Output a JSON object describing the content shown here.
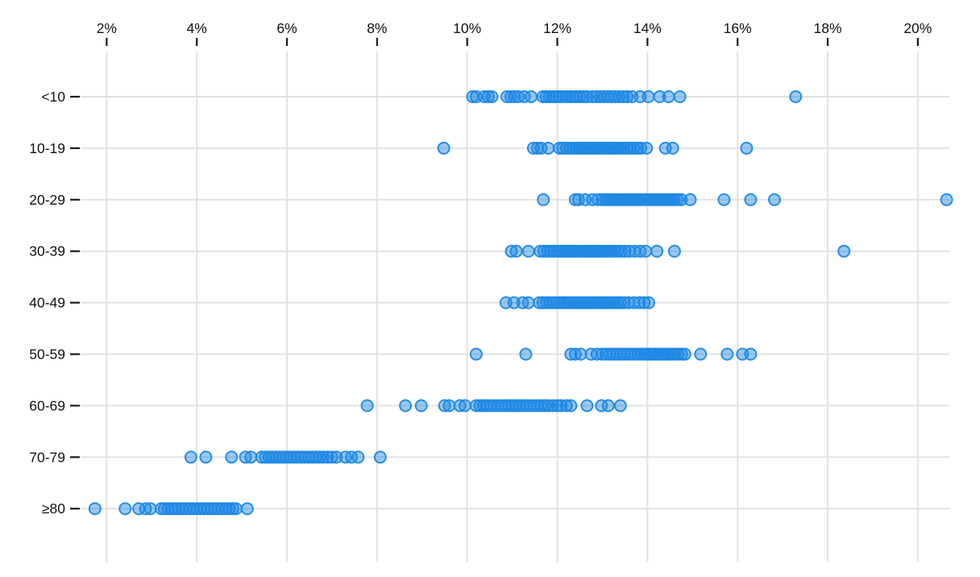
{
  "chart_data": {
    "type": "scatter",
    "variant": "strip-plot",
    "title": "",
    "xlabel": "",
    "ylabel": "",
    "x_axis": {
      "position": "top",
      "unit": "percent",
      "tick_values": [
        2,
        4,
        6,
        8,
        10,
        12,
        14,
        16,
        18,
        20
      ],
      "tick_labels": [
        "2%",
        "4%",
        "6%",
        "8%",
        "10%",
        "12%",
        "14%",
        "16%",
        "18%",
        "20%"
      ],
      "range": [
        1.6,
        20.7
      ],
      "grid": true
    },
    "y_axis": {
      "categories": [
        "<10",
        "10-19",
        "20-29",
        "30-39",
        "40-49",
        "50-59",
        "60-69",
        "70-79",
        "≥80"
      ],
      "grid": true
    },
    "legend": null,
    "series": [
      {
        "category": "<10",
        "values": [
          10.12,
          10.2,
          10.38,
          10.47,
          10.55,
          10.88,
          10.97,
          11.05,
          11.14,
          11.27,
          11.42,
          11.68,
          11.75,
          11.82,
          11.9,
          11.97,
          12.05,
          12.12,
          12.2,
          12.28,
          12.35,
          12.42,
          12.5,
          12.58,
          12.66,
          12.78,
          12.87,
          12.95,
          13.04,
          13.12,
          13.2,
          13.28,
          13.37,
          13.46,
          13.55,
          13.66,
          13.84,
          14.02,
          14.27,
          14.47,
          14.72,
          17.29
        ]
      },
      {
        "category": "10-19",
        "values": [
          9.48,
          11.47,
          11.56,
          11.64,
          11.8,
          12.05,
          12.12,
          12.2,
          12.28,
          12.35,
          12.42,
          12.48,
          12.55,
          12.62,
          12.68,
          12.75,
          12.82,
          12.88,
          12.95,
          13.02,
          13.08,
          13.15,
          13.22,
          13.28,
          13.35,
          13.42,
          13.48,
          13.55,
          13.62,
          13.7,
          13.78,
          13.85,
          13.98,
          14.4,
          14.56,
          16.2
        ]
      },
      {
        "category": "20-29",
        "values": [
          11.69,
          12.4,
          12.47,
          12.62,
          12.78,
          12.9,
          13.0,
          13.07,
          13.14,
          13.2,
          13.27,
          13.34,
          13.4,
          13.47,
          13.54,
          13.6,
          13.67,
          13.74,
          13.8,
          13.87,
          13.94,
          14.0,
          14.07,
          14.14,
          14.2,
          14.27,
          14.34,
          14.4,
          14.47,
          14.54,
          14.6,
          14.67,
          14.75,
          14.95,
          15.7,
          16.29,
          16.82,
          20.64
        ]
      },
      {
        "category": "30-39",
        "values": [
          10.98,
          11.09,
          11.36,
          11.62,
          11.7,
          11.78,
          11.85,
          11.92,
          12.0,
          12.07,
          12.14,
          12.2,
          12.27,
          12.34,
          12.4,
          12.47,
          12.54,
          12.6,
          12.67,
          12.74,
          12.8,
          12.87,
          12.94,
          13.0,
          13.07,
          13.14,
          13.2,
          13.27,
          13.34,
          13.42,
          13.5,
          13.6,
          13.72,
          13.84,
          13.96,
          14.21,
          14.6,
          18.36
        ]
      },
      {
        "category": "40-49",
        "values": [
          10.86,
          11.04,
          11.23,
          11.36,
          11.6,
          11.68,
          11.76,
          11.84,
          11.92,
          12.0,
          12.07,
          12.14,
          12.21,
          12.28,
          12.35,
          12.42,
          12.49,
          12.56,
          12.63,
          12.7,
          12.77,
          12.84,
          12.91,
          12.98,
          13.05,
          13.12,
          13.19,
          13.26,
          13.33,
          13.4,
          13.48,
          13.58,
          13.7,
          13.82,
          13.93,
          14.03
        ]
      },
      {
        "category": "50-59",
        "values": [
          10.2,
          11.3,
          12.3,
          12.4,
          12.52,
          12.75,
          12.88,
          13.0,
          13.08,
          13.16,
          13.24,
          13.32,
          13.4,
          13.48,
          13.56,
          13.64,
          13.72,
          13.8,
          13.87,
          13.94,
          14.0,
          14.07,
          14.14,
          14.2,
          14.27,
          14.34,
          14.4,
          14.47,
          14.54,
          14.6,
          14.68,
          14.76,
          14.83,
          15.18,
          15.77,
          16.11,
          16.29
        ]
      },
      {
        "category": "60-69",
        "values": [
          7.78,
          8.63,
          8.98,
          9.5,
          9.6,
          9.84,
          9.95,
          10.2,
          10.28,
          10.36,
          10.44,
          10.52,
          10.6,
          10.68,
          10.76,
          10.84,
          10.92,
          11.0,
          11.08,
          11.16,
          11.24,
          11.32,
          11.4,
          11.48,
          11.56,
          11.64,
          11.72,
          11.8,
          11.9,
          12.0,
          12.08,
          12.2,
          12.3,
          12.66,
          12.98,
          13.13,
          13.4
        ]
      },
      {
        "category": "70-79",
        "values": [
          3.87,
          4.2,
          4.77,
          5.08,
          5.2,
          5.44,
          5.52,
          5.6,
          5.68,
          5.76,
          5.84,
          5.92,
          6.0,
          6.08,
          6.16,
          6.24,
          6.32,
          6.4,
          6.48,
          6.56,
          6.64,
          6.72,
          6.8,
          6.9,
          7.0,
          7.1,
          7.3,
          7.43,
          7.58,
          8.07
        ]
      },
      {
        "category": "≥80",
        "values": [
          1.74,
          2.41,
          2.71,
          2.86,
          2.97,
          3.21,
          3.28,
          3.36,
          3.44,
          3.52,
          3.6,
          3.68,
          3.76,
          3.84,
          3.92,
          4.0,
          4.08,
          4.16,
          4.24,
          4.32,
          4.4,
          4.48,
          4.56,
          4.64,
          4.72,
          4.8,
          4.87,
          5.12
        ]
      }
    ],
    "style": {
      "dot_color": "#1e88e5",
      "dot_fill_opacity": 0.45,
      "dot_stroke_opacity": 0.95,
      "grid_color": "#e2e2e2",
      "tick_color": "#1a1a1a",
      "axis_text_color": "#111111",
      "background": "#ffffff"
    }
  }
}
